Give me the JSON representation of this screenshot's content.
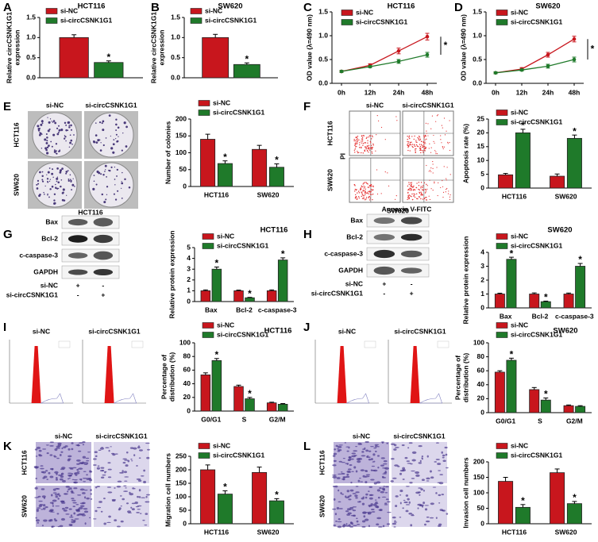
{
  "chart_data": [
    {
      "panel": "A",
      "type": "bar",
      "title": "HCT116",
      "ylabel": [
        "Relative circCSNK1G1",
        "expression"
      ],
      "ylim": [
        0,
        1.5
      ],
      "yticks": [
        {
          "value": 0,
          "label": "0.0"
        },
        0.5,
        {
          "value": 1,
          "label": "1.0"
        },
        1.5
      ],
      "categories": [
        null
      ],
      "series": [
        {
          "name": "si-NC",
          "color": "#c8161d",
          "values": [
            1.0
          ],
          "errors": [
            0.07
          ]
        },
        {
          "name": "si-circCSNK1G1",
          "color": "#1f7a2a",
          "values": [
            0.38
          ],
          "errors": [
            0.04
          ],
          "significance": [
            "*"
          ]
        }
      ]
    },
    {
      "panel": "B",
      "type": "bar",
      "title": "SW620",
      "ylabel": [
        "Relative circCSNK1G1",
        "expression"
      ],
      "ylim": [
        0,
        1.5
      ],
      "yticks": [
        {
          "value": 0,
          "label": "0.0"
        },
        0.5,
        {
          "value": 1,
          "label": "1.0"
        },
        1.5
      ],
      "categories": [
        null
      ],
      "series": [
        {
          "name": "si-NC",
          "color": "#c8161d",
          "values": [
            1.0
          ],
          "errors": [
            0.08
          ]
        },
        {
          "name": "si-circCSNK1G1",
          "color": "#1f7a2a",
          "values": [
            0.33
          ],
          "errors": [
            0.04
          ],
          "significance": [
            "*"
          ]
        }
      ]
    },
    {
      "panel": "C",
      "type": "line",
      "title": "HCT116",
      "ylabel": [
        "OD value (λ=490 nm)"
      ],
      "ylim": [
        0,
        1.5
      ],
      "yticks": [
        {
          "value": 0,
          "label": "0.0"
        },
        0.5,
        {
          "value": 1,
          "label": "1.0"
        },
        1.5
      ],
      "categories": [
        "0h",
        "12h",
        "24h",
        "48h"
      ],
      "annotation": "*",
      "series": [
        {
          "name": "si-NC",
          "color": "#c8161d",
          "values": [
            0.25,
            0.38,
            0.68,
            0.98
          ],
          "errors": [
            0.02,
            0.03,
            0.06,
            0.07
          ]
        },
        {
          "name": "si-circCSNK1G1",
          "color": "#1f7a2a",
          "values": [
            0.25,
            0.35,
            0.46,
            0.6
          ],
          "errors": [
            0.02,
            0.02,
            0.04,
            0.05
          ]
        }
      ]
    },
    {
      "panel": "D",
      "type": "line",
      "title": "SW620",
      "ylabel": [
        "OD value (λ=490 nm)"
      ],
      "ylim": [
        0,
        1.5
      ],
      "yticks": [
        {
          "value": 0,
          "label": "0.0"
        },
        0.5,
        {
          "value": 1,
          "label": "1.0"
        },
        1.5
      ],
      "categories": [
        "0h",
        "12h",
        "24h",
        "48h"
      ],
      "annotation": "*",
      "series": [
        {
          "name": "si-NC",
          "color": "#c8161d",
          "values": [
            0.22,
            0.3,
            0.6,
            0.93
          ],
          "errors": [
            0.02,
            0.03,
            0.05,
            0.06
          ]
        },
        {
          "name": "si-circCSNK1G1",
          "color": "#1f7a2a",
          "values": [
            0.22,
            0.28,
            0.36,
            0.5
          ],
          "errors": [
            0.02,
            0.02,
            0.04,
            0.05
          ]
        }
      ]
    },
    {
      "panel": "E",
      "type": "bar",
      "ylabel": [
        "Number of colonies"
      ],
      "ylim": [
        0,
        200
      ],
      "yticks": [
        0,
        50,
        100,
        150,
        200
      ],
      "categories": [
        "HCT116",
        "SW620"
      ],
      "series": [
        {
          "name": "si-NC",
          "color": "#c8161d",
          "values": [
            140,
            110
          ],
          "errors": [
            15,
            12
          ]
        },
        {
          "name": "si-circCSNK1G1",
          "color": "#1f7a2a",
          "values": [
            68,
            57
          ],
          "errors": [
            8,
            10
          ],
          "significance": [
            "*",
            "*"
          ]
        }
      ]
    },
    {
      "panel": "F",
      "type": "bar",
      "ylabel": [
        "Apoptosis rate (%)"
      ],
      "ylim": [
        0,
        25
      ],
      "yticks": [
        0,
        5,
        10,
        15,
        20,
        25
      ],
      "categories": [
        "HCT116",
        "SW620"
      ],
      "series": [
        {
          "name": "si-NC",
          "color": "#c8161d",
          "values": [
            4.8,
            4.3
          ],
          "errors": [
            0.5,
            0.8
          ]
        },
        {
          "name": "si-circCSNK1G1",
          "color": "#1f7a2a",
          "values": [
            20,
            18
          ],
          "errors": [
            1.3,
            1.2
          ],
          "significance": [
            "*",
            "*"
          ]
        }
      ]
    },
    {
      "panel": "G",
      "type": "bar",
      "title": "HCT116",
      "ylabel": [
        "Relative protein expression"
      ],
      "ylim": [
        0,
        5
      ],
      "yticks": [
        0,
        1,
        2,
        3,
        4,
        5
      ],
      "categories": [
        "Bax",
        "Bcl-2",
        "c-caspase-3"
      ],
      "series": [
        {
          "name": "si-NC",
          "color": "#c8161d",
          "values": [
            1,
            1,
            1
          ],
          "errors": [
            0.08,
            0.06,
            0.08
          ]
        },
        {
          "name": "si-circCSNK1G1",
          "color": "#1f7a2a",
          "values": [
            3.0,
            0.35,
            3.85
          ],
          "errors": [
            0.2,
            0.04,
            0.2
          ],
          "significance": [
            "*",
            "*",
            "*"
          ]
        }
      ]
    },
    {
      "panel": "H",
      "type": "bar",
      "title": "SW620",
      "ylabel": [
        "Relative protein expression"
      ],
      "ylim": [
        0,
        4
      ],
      "yticks": [
        0,
        1,
        2,
        3,
        4
      ],
      "categories": [
        "Bax",
        "Bcl-2",
        "c-caspase-3"
      ],
      "series": [
        {
          "name": "si-NC",
          "color": "#c8161d",
          "values": [
            1,
            1,
            1
          ],
          "errors": [
            0.06,
            0.08,
            0.07
          ]
        },
        {
          "name": "si-circCSNK1G1",
          "color": "#1f7a2a",
          "values": [
            3.5,
            0.45,
            3.0
          ],
          "errors": [
            0.15,
            0.04,
            0.2
          ],
          "significance": [
            "*",
            "*",
            "*"
          ]
        }
      ]
    },
    {
      "panel": "I",
      "type": "bar",
      "title": "HCT116",
      "ylabel": [
        "Percentage of",
        "distribution (%)"
      ],
      "ylim": [
        0,
        100
      ],
      "yticks": [
        0,
        20,
        40,
        60,
        80,
        100
      ],
      "categories": [
        "G0/G1",
        "S",
        "G2/M"
      ],
      "series": [
        {
          "name": "si-NC",
          "color": "#c8161d",
          "values": [
            53,
            36,
            12
          ],
          "errors": [
            3,
            2,
            1
          ]
        },
        {
          "name": "si-circCSNK1G1",
          "color": "#1f7a2a",
          "values": [
            74,
            18,
            10
          ],
          "errors": [
            3,
            2,
            1
          ],
          "significance": [
            "*",
            "*",
            null
          ]
        }
      ]
    },
    {
      "panel": "J",
      "type": "bar",
      "title": "SW620",
      "ylabel": [
        "Percentage of",
        "distribution (%)"
      ],
      "ylim": [
        0,
        100
      ],
      "yticks": [
        0,
        20,
        40,
        60,
        80,
        100
      ],
      "categories": [
        "G0/G1",
        "S",
        "G2/M"
      ],
      "series": [
        {
          "name": "si-NC",
          "color": "#c8161d",
          "values": [
            58,
            33,
            10
          ],
          "errors": [
            2,
            3,
            1
          ]
        },
        {
          "name": "si-circCSNK1G1",
          "color": "#1f7a2a",
          "values": [
            75,
            18,
            9
          ],
          "errors": [
            3,
            3,
            1
          ],
          "significance": [
            "*",
            "*",
            null
          ]
        }
      ]
    },
    {
      "panel": "K",
      "type": "bar",
      "ylabel": [
        "Migration cell numbers"
      ],
      "ylim": [
        0,
        250
      ],
      "yticks": [
        0,
        50,
        100,
        150,
        200,
        250
      ],
      "categories": [
        "HCT116",
        "SW620"
      ],
      "series": [
        {
          "name": "si-NC",
          "color": "#c8161d",
          "values": [
            200,
            190
          ],
          "errors": [
            18,
            20
          ]
        },
        {
          "name": "si-circCSNK1G1",
          "color": "#1f7a2a",
          "values": [
            110,
            85
          ],
          "errors": [
            12,
            8
          ],
          "significance": [
            "*",
            "*"
          ]
        }
      ]
    },
    {
      "panel": "L",
      "type": "bar",
      "ylabel": [
        "Invasion cell numbers"
      ],
      "ylim": [
        0,
        200
      ],
      "yticks": [
        0,
        50,
        100,
        150,
        200
      ],
      "categories": [
        "HCT116",
        "SW620"
      ],
      "series": [
        {
          "name": "si-NC",
          "color": "#c8161d",
          "values": [
            137,
            165
          ],
          "errors": [
            13,
            12
          ]
        },
        {
          "name": "si-circCSNK1G1",
          "color": "#1f7a2a",
          "values": [
            53,
            65
          ],
          "errors": [
            9,
            7
          ],
          "significance": [
            "*",
            "*"
          ]
        }
      ]
    }
  ],
  "image_panels": [
    {
      "columns": [
        "si-NC",
        "si-circCSNK1G1"
      ],
      "rows": [
        "HCT116",
        "SW620"
      ]
    },
    {
      "columns": [
        "si-NC",
        "si-circCSNK1G1"
      ],
      "rows": [
        "HCT116",
        "SW620"
      ],
      "ylabel": "PI",
      "xlabel": "Annexin V-FITC"
    },
    {
      "title": "HCT116",
      "bands": [
        "Bax",
        "Bcl-2",
        "c-caspase-3",
        "GAPDH"
      ],
      "lanes": [
        {
          "name": "si-NC",
          "signs": [
            "+",
            "-"
          ]
        },
        {
          "name": "si-circCSNK1G1",
          "signs": [
            "-",
            "+"
          ]
        }
      ]
    },
    {
      "title": "SW620",
      "bands": [
        "Bax",
        "Bcl-2",
        "c-caspase-3",
        "GAPDH"
      ],
      "lanes": [
        {
          "name": "si-NC",
          "signs": [
            "+",
            "-"
          ]
        },
        {
          "name": "si-circCSNK1G1",
          "signs": [
            "-",
            "+"
          ]
        }
      ]
    },
    {
      "columns": [
        "si-NC",
        "si-circCSNK1G1"
      ]
    },
    {
      "columns": [
        "si-NC",
        "si-circCSNK1G1"
      ]
    },
    {
      "columns": [
        "si-NC",
        "si-circCSNK1G1"
      ],
      "rows": [
        "HCT116",
        "SW620"
      ]
    },
    {
      "columns": [
        "si-NC",
        "si-circCSNK1G1"
      ],
      "rows": [
        "HCT116",
        "SW620"
      ]
    }
  ]
}
